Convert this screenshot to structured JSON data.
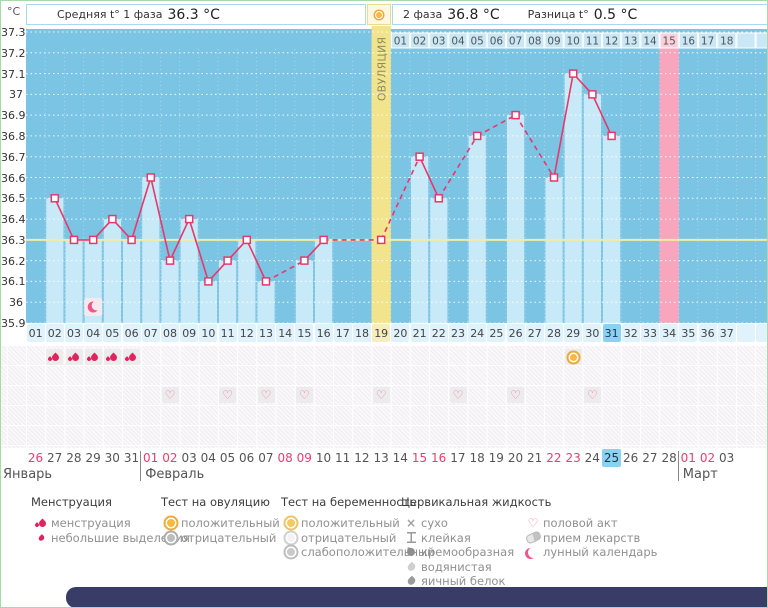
{
  "header": {
    "unit": "°C",
    "phase1_label": "Средняя t° 1 фаза",
    "phase1_value": "36.3 °C",
    "phase2_label": "2 фаза",
    "phase2_value": "36.8 °C",
    "diff_label": "Разница t°",
    "diff_value": "0.5 °C"
  },
  "chart_data": {
    "type": "line",
    "title": "График базальной температуры",
    "ylabel": "°C",
    "ylim": [
      35.9,
      37.3
    ],
    "ytick_labels": [
      "37.3",
      "37.2",
      "37.1",
      "37",
      "36.9",
      "36.8",
      "36.7",
      "36.6",
      "36.5",
      "36.4",
      "36.3",
      "36.2",
      "36.1",
      "36",
      "35.9"
    ],
    "x_labels": [
      "01",
      "02",
      "03",
      "04",
      "05",
      "06",
      "07",
      "08",
      "09",
      "10",
      "11",
      "12",
      "13",
      "14",
      "15",
      "16",
      "17",
      "18",
      "19",
      "20",
      "21",
      "22",
      "23",
      "24",
      "25",
      "26",
      "27",
      "28",
      "29",
      "30",
      "31",
      "32",
      "33",
      "34",
      "35",
      "36",
      "37"
    ],
    "temps_by_day": [
      null,
      36.5,
      36.3,
      36.3,
      36.4,
      36.3,
      36.6,
      36.2,
      36.4,
      36.1,
      36.2,
      36.3,
      36.1,
      null,
      36.2,
      36.3,
      null,
      null,
      36.3,
      null,
      36.7,
      36.5,
      null,
      36.8,
      null,
      36.9,
      null,
      36.6,
      37.1,
      37.0,
      36.8,
      null,
      null,
      null,
      null,
      null,
      null
    ],
    "coverline": 36.3,
    "ovulation_day": 19,
    "ovulation_label": "ОВУЛЯЦИЯ",
    "today_day": 31,
    "top_labels": [
      "01",
      "02",
      "03",
      "04",
      "05",
      "06",
      "07",
      "08",
      "09",
      "10",
      "11",
      "12",
      "13",
      "14",
      "15",
      "16",
      "17",
      "18"
    ],
    "predicted_period_top_label": "15",
    "predicted_period_day": 34,
    "moon_day": 4,
    "menstruation_days": [
      2,
      3,
      4,
      5,
      6
    ],
    "ovulation_test_positive_days": [
      29
    ],
    "intercourse_days": [
      8,
      11,
      13,
      15,
      19,
      23,
      26,
      30
    ],
    "colors": {
      "plot_bg": "#7cc4e4",
      "bar": "#c7e9f8",
      "line": "#e8376b",
      "coverline": "#f1eda2",
      "ovulation_col": "#f2e48c",
      "period_col": "#f7a6be",
      "period_cell": "#fbd0dc",
      "top_cell": "#c9e7f5",
      "today_cell": "#8bd2f2"
    }
  },
  "calendar": {
    "months": [
      {
        "name": "Январь",
        "dates": [
          {
            "d": "26",
            "weekend": true
          },
          {
            "d": "27"
          },
          {
            "d": "28"
          },
          {
            "d": "29"
          },
          {
            "d": "30"
          },
          {
            "d": "31"
          }
        ]
      },
      {
        "name": "Февраль",
        "dates": [
          {
            "d": "01",
            "weekend": true
          },
          {
            "d": "02",
            "weekend": true
          },
          {
            "d": "03"
          },
          {
            "d": "04"
          },
          {
            "d": "05"
          },
          {
            "d": "06"
          },
          {
            "d": "07"
          },
          {
            "d": "08",
            "weekend": true
          },
          {
            "d": "09",
            "weekend": true
          },
          {
            "d": "10"
          },
          {
            "d": "11"
          },
          {
            "d": "12"
          },
          {
            "d": "13"
          },
          {
            "d": "14"
          },
          {
            "d": "15",
            "weekend": true
          },
          {
            "d": "16",
            "weekend": true
          },
          {
            "d": "17"
          },
          {
            "d": "18"
          },
          {
            "d": "19"
          },
          {
            "d": "20"
          },
          {
            "d": "21"
          },
          {
            "d": "22",
            "weekend": true
          },
          {
            "d": "23",
            "weekend": true
          },
          {
            "d": "24"
          },
          {
            "d": "25",
            "today": true
          },
          {
            "d": "26"
          },
          {
            "d": "27"
          },
          {
            "d": "28"
          }
        ]
      },
      {
        "name": "Март",
        "dates": [
          {
            "d": "01",
            "weekend": true
          },
          {
            "d": "02",
            "weekend": true
          },
          {
            "d": "03"
          }
        ]
      }
    ]
  },
  "legend": {
    "menstruation": {
      "title": "Менструация",
      "items": [
        {
          "label": "менструация"
        },
        {
          "label": "небольшие выделения"
        }
      ]
    },
    "ovulation_test": {
      "title": "Тест на овуляцию",
      "items": [
        {
          "label": "положительный"
        },
        {
          "label": "отрицательный"
        }
      ]
    },
    "pregnancy_test": {
      "title": "Тест на беременность",
      "items": [
        {
          "label": "положительный"
        },
        {
          "label": "отрицательный"
        },
        {
          "label": "слабоположительный"
        }
      ]
    },
    "cervical_fluid": {
      "title": "Цервикальная жидкость",
      "items": [
        {
          "label": "сухо"
        },
        {
          "label": "клейкая"
        },
        {
          "label": "кремообразная"
        },
        {
          "label": "водянистая"
        },
        {
          "label": "яичный белок"
        }
      ]
    },
    "other": {
      "items": [
        {
          "label": "половой акт"
        },
        {
          "label": "прием лекарств"
        },
        {
          "label": "лунный календарь"
        }
      ]
    }
  }
}
